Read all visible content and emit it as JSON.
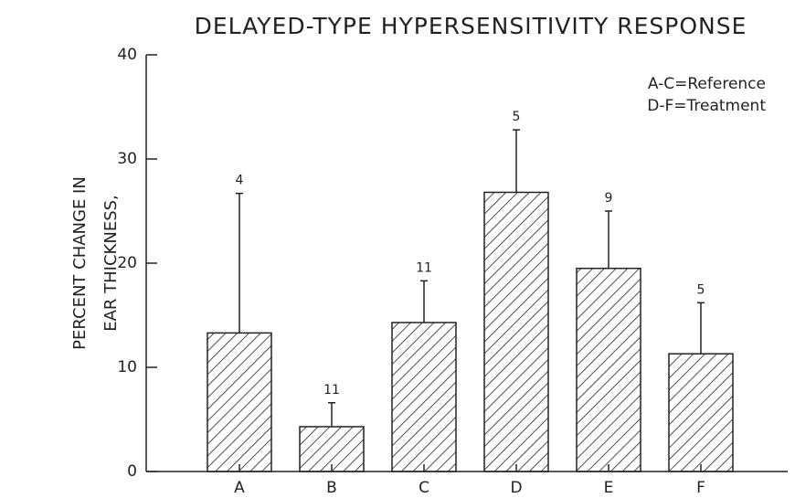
{
  "chart_data": {
    "type": "bar",
    "title": "DELAYED-TYPE HYPERSENSITIVITY RESPONSE",
    "ylabel": [
      "PERCENT CHANGE IN",
      "EAR THICKNESS,"
    ],
    "annotations": [
      "A-C=Reference",
      "D-F=Treatment"
    ],
    "categories": [
      "A",
      "B",
      "C",
      "D",
      "E",
      "F"
    ],
    "values": [
      13.3,
      4.3,
      14.3,
      26.8,
      19.5,
      11.3
    ],
    "errors": [
      13.4,
      2.3,
      4.0,
      6.0,
      5.5,
      4.9
    ],
    "n_labels": [
      "4",
      "11",
      "11",
      "5",
      "9",
      "5"
    ],
    "color": "#222222",
    "ylim": [
      0,
      40
    ],
    "yticks": [
      0,
      10,
      20,
      30,
      40
    ],
    "grid": false
  }
}
